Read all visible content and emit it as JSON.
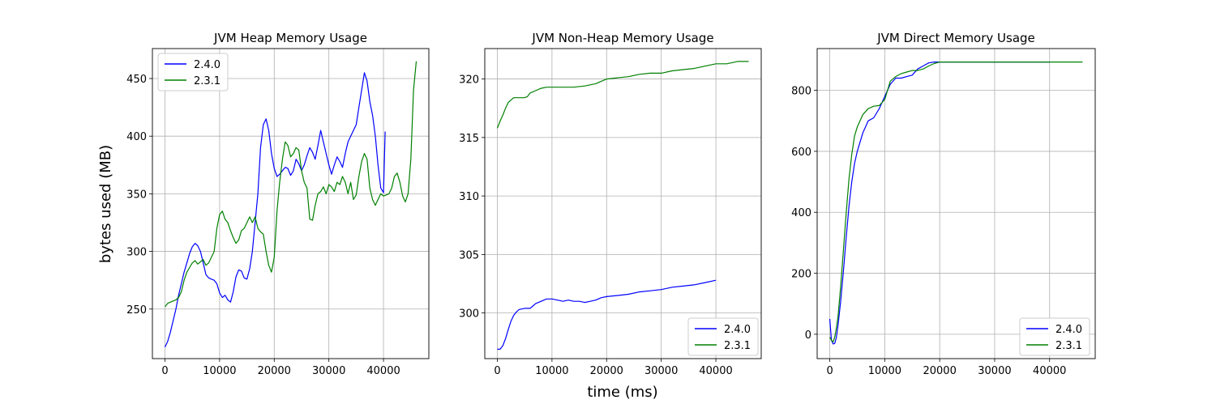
{
  "figure": {
    "ylabel": "bytes used (MB)",
    "xlabel": "time (ms)"
  },
  "chart_data": [
    {
      "type": "line",
      "title": "JVM Heap Memory Usage",
      "xlim": [
        -2300,
        48300
      ],
      "ylim": [
        207,
        476
      ],
      "xticks": [
        0,
        10000,
        20000,
        30000,
        40000
      ],
      "yticks": [
        250,
        300,
        350,
        400,
        450
      ],
      "grid": true,
      "legend": "upper left",
      "series": [
        {
          "name": "2.4.0",
          "color": "#0000ff",
          "x": [
            0,
            500,
            1000,
            1500,
            2000,
            2500,
            3000,
            3500,
            4000,
            4500,
            5000,
            5500,
            6000,
            6500,
            7000,
            7500,
            8000,
            8500,
            9000,
            9500,
            10000,
            10500,
            11000,
            11500,
            12000,
            12500,
            13000,
            13500,
            14000,
            14500,
            15000,
            15500,
            16000,
            16500,
            17000,
            17500,
            18000,
            18500,
            19000,
            19500,
            20000,
            20500,
            21000,
            21500,
            22000,
            22500,
            23000,
            23500,
            24000,
            24500,
            25000,
            25500,
            26000,
            26500,
            27000,
            27500,
            28000,
            28500,
            29000,
            29500,
            30000,
            30500,
            31000,
            31500,
            32000,
            32500,
            33000,
            33500,
            34000,
            34500,
            35000,
            35500,
            36000,
            36500,
            37000,
            37500,
            38000,
            38500,
            39000,
            39500,
            40000,
            40300
          ],
          "y": [
            217,
            222,
            230,
            240,
            250,
            262,
            272,
            282,
            290,
            298,
            304,
            307,
            305,
            300,
            290,
            280,
            277,
            276,
            275,
            272,
            264,
            260,
            262,
            258,
            256,
            265,
            278,
            284,
            283,
            277,
            276,
            285,
            300,
            325,
            350,
            390,
            410,
            415,
            405,
            385,
            372,
            365,
            367,
            370,
            373,
            372,
            366,
            370,
            380,
            376,
            370,
            375,
            383,
            390,
            386,
            380,
            392,
            405,
            395,
            385,
            375,
            367,
            375,
            382,
            378,
            373,
            385,
            395,
            400,
            405,
            410,
            425,
            440,
            455,
            448,
            430,
            418,
            400,
            375,
            355,
            351,
            404
          ]
        },
        {
          "name": "2.3.1",
          "color": "#008000",
          "x": [
            0,
            500,
            1000,
            1500,
            2000,
            2500,
            3000,
            3500,
            4000,
            4500,
            5000,
            5500,
            6000,
            6500,
            7000,
            7500,
            8000,
            8500,
            9000,
            9500,
            10000,
            10500,
            11000,
            11500,
            12000,
            12500,
            13000,
            13500,
            14000,
            14500,
            15000,
            15500,
            16000,
            16500,
            17000,
            17500,
            18000,
            18500,
            19000,
            19500,
            20000,
            20500,
            21000,
            21500,
            22000,
            22500,
            23000,
            23500,
            24000,
            24500,
            25000,
            25500,
            26000,
            26500,
            27000,
            27500,
            28000,
            28500,
            29000,
            29500,
            30000,
            30500,
            31000,
            31500,
            32000,
            32500,
            33000,
            33500,
            34000,
            34500,
            35000,
            35500,
            36000,
            36500,
            37000,
            37500,
            38000,
            38500,
            39000,
            39500,
            40000,
            40500,
            41000,
            41500,
            42000,
            42500,
            43000,
            43500,
            44000,
            44500,
            45000,
            45500,
            46000
          ],
          "y": [
            252,
            255,
            256,
            257,
            258,
            260,
            265,
            275,
            282,
            286,
            290,
            292,
            289,
            291,
            293,
            288,
            290,
            295,
            300,
            320,
            332,
            335,
            328,
            325,
            318,
            312,
            307,
            310,
            318,
            320,
            325,
            330,
            325,
            330,
            320,
            317,
            315,
            300,
            288,
            282,
            295,
            335,
            360,
            380,
            395,
            392,
            382,
            385,
            390,
            388,
            370,
            360,
            355,
            328,
            327,
            340,
            350,
            352,
            356,
            350,
            358,
            356,
            352,
            360,
            358,
            365,
            360,
            350,
            360,
            345,
            349,
            365,
            378,
            385,
            380,
            355,
            345,
            340,
            345,
            350,
            348,
            349,
            350,
            355,
            365,
            368,
            360,
            348,
            343,
            350,
            380,
            440,
            465
          ]
        }
      ]
    },
    {
      "type": "line",
      "title": "JVM Non-Heap Memory Usage",
      "xlim": [
        -2300,
        48300
      ],
      "ylim": [
        296.1,
        322.6
      ],
      "xticks": [
        0,
        10000,
        20000,
        30000,
        40000
      ],
      "yticks": [
        300,
        305,
        310,
        315,
        320
      ],
      "grid": true,
      "legend": "lower right",
      "series": [
        {
          "name": "2.4.0",
          "color": "#0000ff",
          "x": [
            0,
            500,
            1000,
            1500,
            2000,
            2500,
            3000,
            3500,
            4000,
            5000,
            6000,
            6500,
            7000,
            8000,
            9000,
            10000,
            11000,
            12000,
            13000,
            14000,
            15000,
            16000,
            17000,
            18000,
            19000,
            20000,
            22000,
            24000,
            26000,
            28000,
            30000,
            32000,
            34000,
            36000,
            38000,
            40000
          ],
          "y": [
            296.9,
            296.9,
            297.2,
            297.8,
            298.6,
            299.3,
            299.8,
            300.1,
            300.3,
            300.4,
            300.4,
            300.6,
            300.8,
            301.0,
            301.2,
            301.2,
            301.1,
            301.0,
            301.1,
            301.0,
            301.0,
            300.9,
            301.0,
            301.1,
            301.3,
            301.4,
            301.5,
            301.6,
            301.8,
            301.9,
            302.0,
            302.2,
            302.3,
            302.4,
            302.6,
            302.8
          ]
        },
        {
          "name": "2.3.1",
          "color": "#008000",
          "x": [
            0,
            500,
            1000,
            1500,
            2000,
            2500,
            3000,
            3500,
            4000,
            5000,
            5500,
            6000,
            7000,
            8000,
            9000,
            10000,
            12000,
            14000,
            16000,
            18000,
            20000,
            22000,
            24000,
            26000,
            28000,
            30000,
            32000,
            34000,
            36000,
            38000,
            40000,
            42000,
            44000,
            46000
          ],
          "y": [
            315.8,
            316.4,
            316.9,
            317.5,
            318.0,
            318.2,
            318.4,
            318.4,
            318.4,
            318.4,
            318.5,
            318.8,
            319.0,
            319.2,
            319.3,
            319.3,
            319.3,
            319.3,
            319.4,
            319.6,
            320.0,
            320.1,
            320.2,
            320.4,
            320.5,
            320.5,
            320.7,
            320.8,
            320.9,
            321.1,
            321.3,
            321.3,
            321.5,
            321.5
          ]
        }
      ]
    },
    {
      "type": "line",
      "title": "JVM Direct Memory Usage",
      "xlim": [
        -2300,
        48300
      ],
      "ylim": [
        -80,
        937
      ],
      "xticks": [
        0,
        10000,
        20000,
        30000,
        40000
      ],
      "yticks": [
        0,
        200,
        400,
        600,
        800
      ],
      "grid": true,
      "legend": "lower right",
      "series": [
        {
          "name": "2.4.0",
          "color": "#0000ff",
          "x": [
            0,
            300,
            600,
            900,
            1200,
            1500,
            2000,
            2500,
            3000,
            3500,
            4000,
            4500,
            5000,
            6000,
            7000,
            8000,
            9000,
            10000,
            11000,
            12000,
            13000,
            14000,
            15000,
            16000,
            17000,
            18000,
            19000,
            20000,
            25000,
            30000,
            35000,
            40000
          ],
          "y": [
            50,
            -20,
            -32,
            -30,
            -10,
            30,
            110,
            210,
            320,
            420,
            500,
            560,
            600,
            660,
            700,
            710,
            740,
            780,
            820,
            840,
            840,
            845,
            850,
            870,
            880,
            890,
            893,
            893,
            893,
            893,
            893,
            893
          ]
        },
        {
          "name": "2.3.1",
          "color": "#008000",
          "x": [
            0,
            300,
            600,
            900,
            1200,
            1500,
            2000,
            2500,
            3000,
            3500,
            4000,
            4500,
            5000,
            6000,
            7000,
            8000,
            9000,
            10000,
            11000,
            12000,
            13000,
            14000,
            15000,
            16000,
            17000,
            18000,
            19000,
            20000,
            25000,
            30000,
            35000,
            40000,
            46000
          ],
          "y": [
            -10,
            -20,
            -25,
            -10,
            20,
            60,
            160,
            280,
            400,
            510,
            590,
            650,
            680,
            720,
            740,
            748,
            750,
            770,
            830,
            845,
            855,
            860,
            865,
            865,
            870,
            880,
            888,
            893,
            893,
            893,
            893,
            893,
            893
          ]
        }
      ]
    }
  ]
}
